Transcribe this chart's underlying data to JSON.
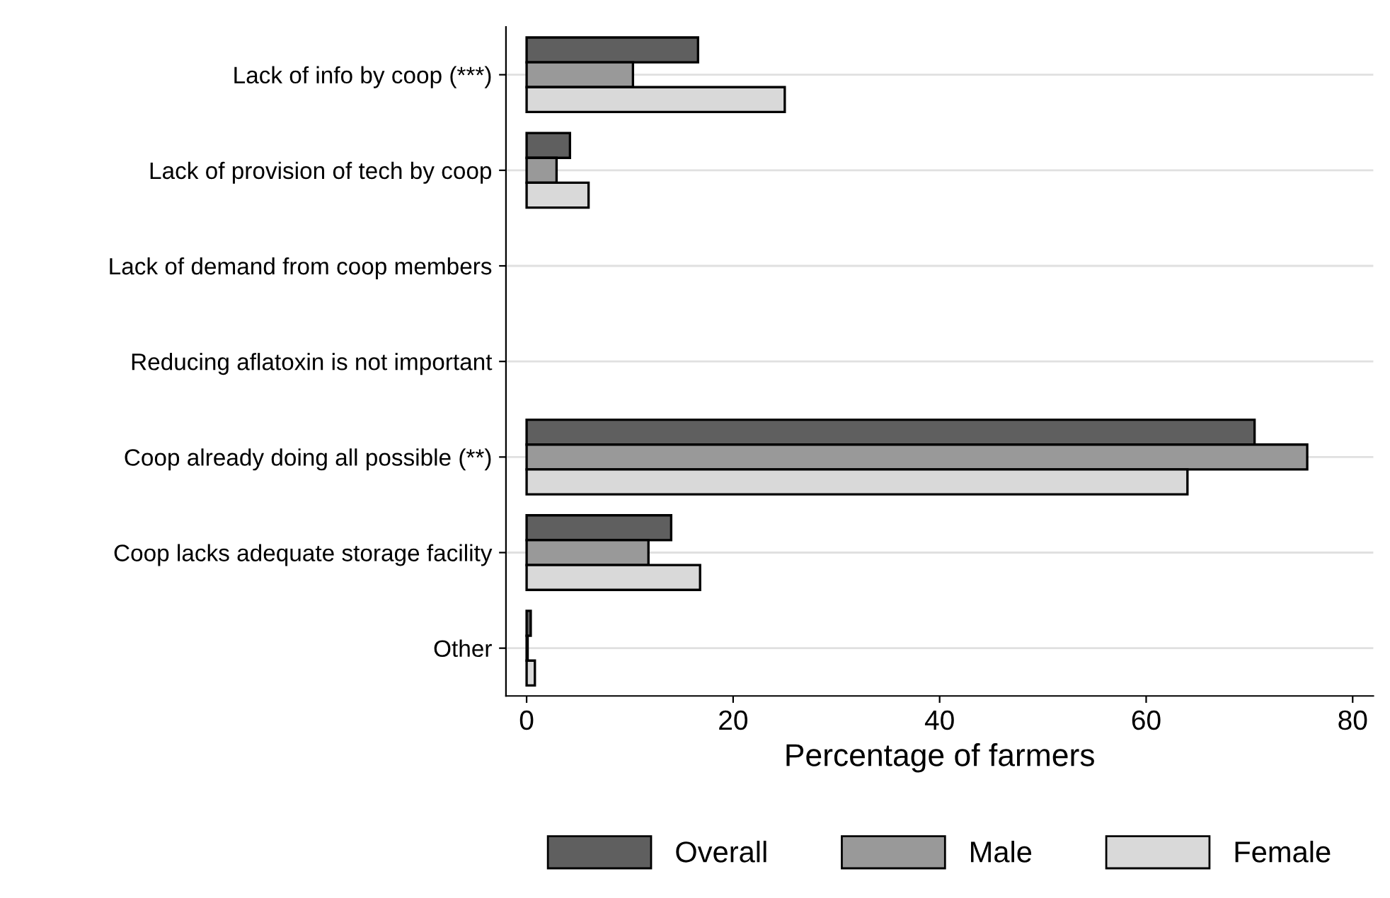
{
  "chart_data": {
    "type": "bar",
    "orientation": "horizontal",
    "xlabel": "Percentage of farmers",
    "categories": [
      "Lack of info by coop (***)",
      "Lack of provision of tech by coop",
      "Lack of demand from coop members",
      "Reducing aflatoxin is not important",
      "Coop already doing all possible (**)",
      "Coop lacks adequate storage facility",
      "Other"
    ],
    "series": [
      {
        "name": "Overall",
        "color": "#5f5f5f",
        "values": [
          16.6,
          4.2,
          0,
          0,
          70.5,
          14.0,
          0.4
        ]
      },
      {
        "name": "Male",
        "color": "#999999",
        "values": [
          10.3,
          2.9,
          0,
          0,
          75.6,
          11.8,
          0.1
        ]
      },
      {
        "name": "Female",
        "color": "#d9d9d9",
        "values": [
          25.0,
          6.0,
          0,
          0,
          64.0,
          16.8,
          0.8
        ]
      }
    ],
    "xlim": [
      -2,
      82
    ],
    "xticks": [
      0,
      20,
      40,
      60,
      80
    ],
    "grid": "y",
    "legend": "bottom"
  }
}
